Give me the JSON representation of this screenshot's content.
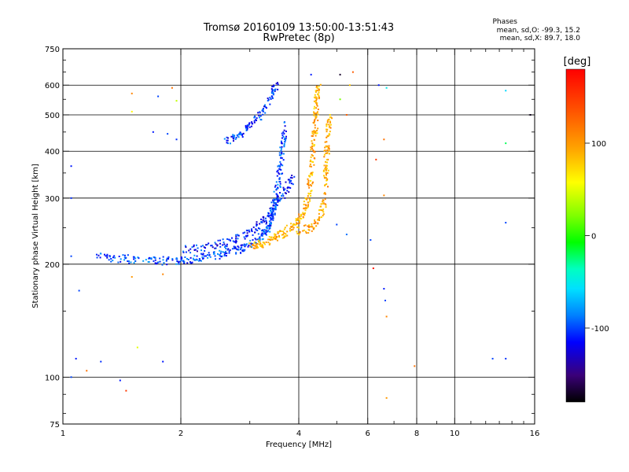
{
  "chart_data": {
    "type": "scatter",
    "title": "Tromsø 20160109 13:50:00-13:51:43",
    "subtitle": "RwPretec (8p)",
    "xlabel": "Frequency [MHz]",
    "ylabel": "Stationary phase Virtual Height [km]",
    "x_scale": "log",
    "y_scale": "log",
    "xlim": [
      1,
      16
    ],
    "ylim": [
      75,
      750
    ],
    "x_ticks": [
      1,
      2,
      4,
      6,
      8,
      10,
      16
    ],
    "x_tick_labels": [
      "1",
      "2",
      "4",
      "6",
      "8",
      "10",
      "16"
    ],
    "y_ticks": [
      75,
      100,
      200,
      300,
      400,
      500,
      600,
      750
    ],
    "y_tick_labels": [
      "75",
      "100",
      "200",
      "300",
      "400",
      "500",
      "600",
      "750"
    ],
    "grid": true,
    "colorbar": {
      "label": "[deg]",
      "range": [
        -180,
        180
      ],
      "ticks": [
        100,
        0,
        -100
      ],
      "tick_labels": [
        "100",
        "0",
        "-100"
      ]
    },
    "phases_box": {
      "heading": "Phases",
      "line1": "mean, sd,O: -99.3, 15.2",
      "line2": "mean, sd,X:  89.7, 18.0"
    },
    "traces": [
      {
        "mode": "O",
        "phase": -100,
        "points": [
          [
            1.2,
            210
          ],
          [
            1.4,
            207
          ],
          [
            1.6,
            205
          ],
          [
            1.8,
            204
          ],
          [
            2.0,
            205
          ],
          [
            2.2,
            207
          ],
          [
            2.4,
            210
          ],
          [
            2.6,
            214
          ],
          [
            2.8,
            219
          ],
          [
            3.0,
            226
          ],
          [
            3.2,
            236
          ],
          [
            3.3,
            245
          ],
          [
            3.4,
            258
          ],
          [
            3.45,
            275
          ],
          [
            3.5,
            300
          ],
          [
            3.55,
            330
          ],
          [
            3.6,
            370
          ],
          [
            3.65,
            420
          ],
          [
            3.7,
            470
          ]
        ]
      },
      {
        "mode": "O2",
        "phase": -110,
        "points": [
          [
            2.0,
            218
          ],
          [
            2.3,
            222
          ],
          [
            2.6,
            228
          ],
          [
            2.9,
            238
          ],
          [
            3.1,
            250
          ],
          [
            3.3,
            268
          ],
          [
            3.5,
            290
          ],
          [
            3.7,
            315
          ],
          [
            3.85,
            340
          ]
        ]
      },
      {
        "mode": "O-upper",
        "phase": -105,
        "points": [
          [
            2.6,
            420
          ],
          [
            2.8,
            440
          ],
          [
            3.0,
            465
          ],
          [
            3.2,
            500
          ],
          [
            3.4,
            560
          ],
          [
            3.5,
            600
          ]
        ]
      },
      {
        "mode": "X",
        "phase": 90,
        "points": [
          [
            3.0,
            222
          ],
          [
            3.2,
            226
          ],
          [
            3.4,
            232
          ],
          [
            3.6,
            240
          ],
          [
            3.8,
            250
          ],
          [
            4.0,
            262
          ],
          [
            4.15,
            280
          ],
          [
            4.25,
            310
          ],
          [
            4.3,
            350
          ],
          [
            4.35,
            400
          ],
          [
            4.4,
            450
          ],
          [
            4.42,
            500
          ],
          [
            4.45,
            560
          ],
          [
            4.5,
            600
          ]
        ]
      },
      {
        "mode": "X2",
        "phase": 95,
        "points": [
          [
            4.0,
            245
          ],
          [
            4.3,
            250
          ],
          [
            4.55,
            265
          ],
          [
            4.65,
            300
          ],
          [
            4.7,
            350
          ],
          [
            4.72,
            400
          ],
          [
            4.75,
            450
          ],
          [
            4.8,
            500
          ]
        ]
      }
    ],
    "scatter_points": [
      {
        "x": 1.05,
        "y": 365,
        "phase": -110
      },
      {
        "x": 1.05,
        "y": 300,
        "phase": -105
      },
      {
        "x": 1.05,
        "y": 210,
        "phase": -100
      },
      {
        "x": 1.1,
        "y": 170,
        "phase": -100
      },
      {
        "x": 1.08,
        "y": 112,
        "phase": -110
      },
      {
        "x": 1.05,
        "y": 100,
        "phase": -100
      },
      {
        "x": 1.15,
        "y": 104,
        "phase": 120
      },
      {
        "x": 1.25,
        "y": 110,
        "phase": -105
      },
      {
        "x": 1.5,
        "y": 570,
        "phase": 110
      },
      {
        "x": 1.5,
        "y": 510,
        "phase": 60
      },
      {
        "x": 1.55,
        "y": 120,
        "phase": 50
      },
      {
        "x": 1.75,
        "y": 560,
        "phase": -100
      },
      {
        "x": 1.9,
        "y": 590,
        "phase": 120
      },
      {
        "x": 1.95,
        "y": 545,
        "phase": 40
      },
      {
        "x": 1.7,
        "y": 450,
        "phase": -110
      },
      {
        "x": 1.85,
        "y": 445,
        "phase": -100
      },
      {
        "x": 1.95,
        "y": 430,
        "phase": -105
      },
      {
        "x": 1.8,
        "y": 110,
        "phase": -110
      },
      {
        "x": 1.4,
        "y": 98,
        "phase": -110
      },
      {
        "x": 1.45,
        "y": 92,
        "phase": 150
      },
      {
        "x": 1.8,
        "y": 188,
        "phase": 110
      },
      {
        "x": 1.5,
        "y": 185,
        "phase": 100
      },
      {
        "x": 4.3,
        "y": 640,
        "phase": -110
      },
      {
        "x": 5.1,
        "y": 640,
        "phase": -170
      },
      {
        "x": 5.5,
        "y": 650,
        "phase": 130
      },
      {
        "x": 5.4,
        "y": 600,
        "phase": 80
      },
      {
        "x": 6.4,
        "y": 600,
        "phase": -110
      },
      {
        "x": 6.7,
        "y": 590,
        "phase": -50
      },
      {
        "x": 6.6,
        "y": 430,
        "phase": 120
      },
      {
        "x": 6.6,
        "y": 305,
        "phase": 110
      },
      {
        "x": 6.3,
        "y": 380,
        "phase": 150
      },
      {
        "x": 6.2,
        "y": 195,
        "phase": 170
      },
      {
        "x": 5.0,
        "y": 255,
        "phase": -100
      },
      {
        "x": 5.3,
        "y": 240,
        "phase": -90
      },
      {
        "x": 6.1,
        "y": 232,
        "phase": -100
      },
      {
        "x": 6.6,
        "y": 172,
        "phase": -110
      },
      {
        "x": 6.65,
        "y": 160,
        "phase": -100
      },
      {
        "x": 6.7,
        "y": 145,
        "phase": 110
      },
      {
        "x": 6.7,
        "y": 88,
        "phase": 100
      },
      {
        "x": 7.9,
        "y": 107,
        "phase": 120
      },
      {
        "x": 12.5,
        "y": 112,
        "phase": -100
      },
      {
        "x": 13.5,
        "y": 112,
        "phase": -105
      },
      {
        "x": 13.5,
        "y": 580,
        "phase": -60
      },
      {
        "x": 13.5,
        "y": 420,
        "phase": -20
      },
      {
        "x": 13.5,
        "y": 258,
        "phase": -100
      },
      {
        "x": 15.6,
        "y": 500,
        "phase": -170
      },
      {
        "x": 5.1,
        "y": 550,
        "phase": 20
      },
      {
        "x": 5.3,
        "y": 500,
        "phase": 130
      }
    ]
  }
}
